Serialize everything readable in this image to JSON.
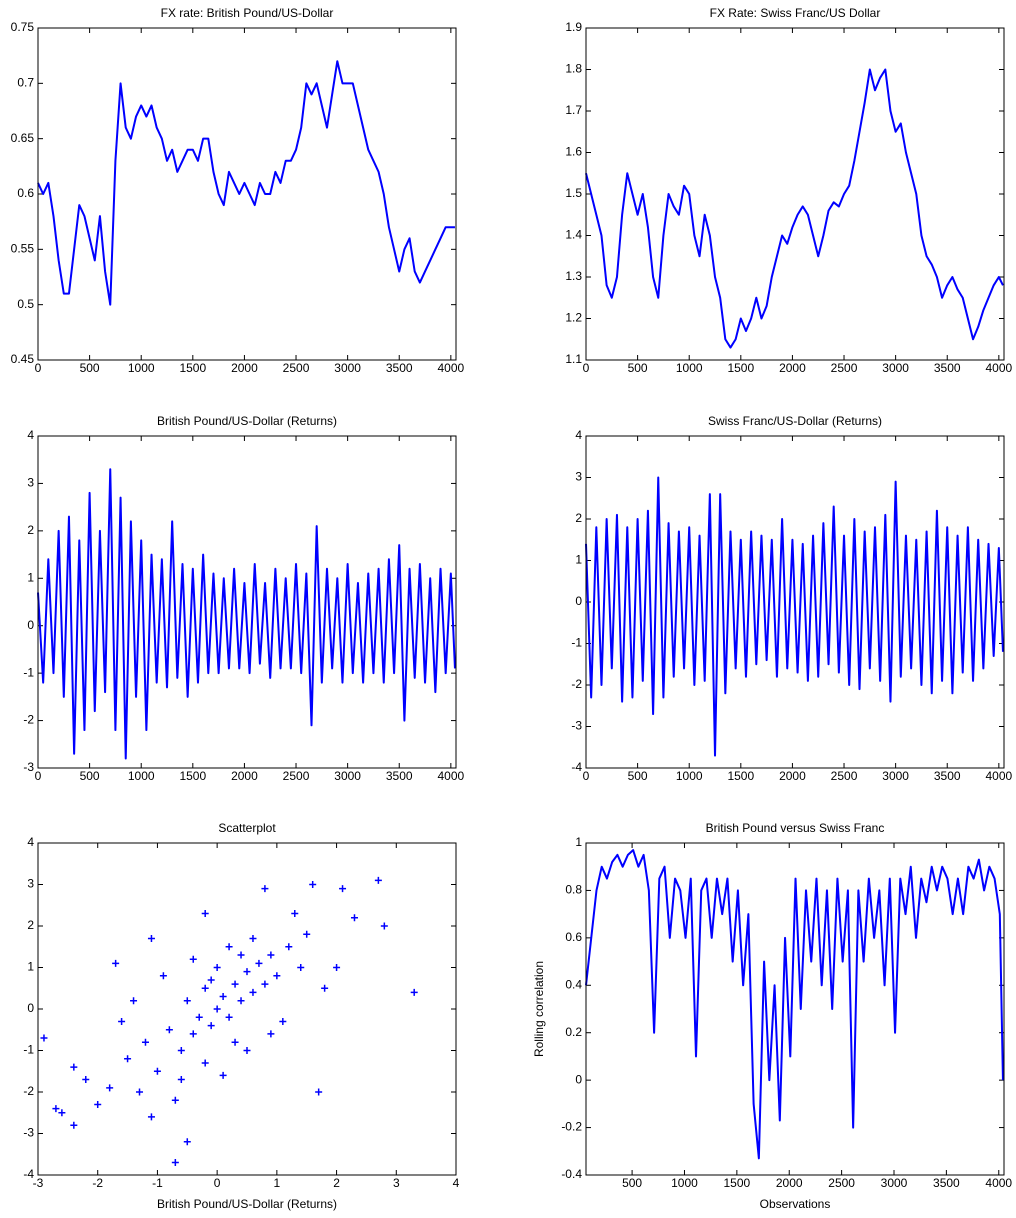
{
  "chart_data": [
    {
      "type": "line",
      "title": "FX rate: British Pound/US-Dollar",
      "color": "#0000ff",
      "x": [
        0,
        50,
        100,
        150,
        200,
        250,
        300,
        350,
        400,
        450,
        500,
        550,
        600,
        650,
        700,
        750,
        800,
        850,
        900,
        950,
        1000,
        1050,
        1100,
        1150,
        1200,
        1250,
        1300,
        1350,
        1400,
        1450,
        1500,
        1550,
        1600,
        1650,
        1700,
        1750,
        1800,
        1850,
        1900,
        1950,
        2000,
        2050,
        2100,
        2150,
        2200,
        2250,
        2300,
        2350,
        2400,
        2450,
        2500,
        2550,
        2600,
        2650,
        2700,
        2750,
        2800,
        2850,
        2900,
        2950,
        3000,
        3050,
        3100,
        3150,
        3200,
        3250,
        3300,
        3350,
        3400,
        3450,
        3500,
        3550,
        3600,
        3650,
        3700,
        3750,
        3800,
        3850,
        3900,
        3950,
        4000,
        4040
      ],
      "values": [
        0.61,
        0.6,
        0.61,
        0.58,
        0.54,
        0.51,
        0.51,
        0.55,
        0.59,
        0.58,
        0.56,
        0.54,
        0.58,
        0.53,
        0.5,
        0.63,
        0.7,
        0.66,
        0.65,
        0.67,
        0.68,
        0.67,
        0.68,
        0.66,
        0.65,
        0.63,
        0.64,
        0.62,
        0.63,
        0.64,
        0.64,
        0.63,
        0.65,
        0.65,
        0.62,
        0.6,
        0.59,
        0.62,
        0.61,
        0.6,
        0.61,
        0.6,
        0.59,
        0.61,
        0.6,
        0.6,
        0.62,
        0.61,
        0.63,
        0.63,
        0.64,
        0.66,
        0.7,
        0.69,
        0.7,
        0.68,
        0.66,
        0.69,
        0.72,
        0.7,
        0.7,
        0.7,
        0.68,
        0.66,
        0.64,
        0.63,
        0.62,
        0.6,
        0.57,
        0.55,
        0.53,
        0.55,
        0.56,
        0.53,
        0.52,
        0.53,
        0.54,
        0.55,
        0.56,
        0.57,
        0.57,
        0.57
      ],
      "xlim": [
        0,
        4050
      ],
      "xticks": [
        0,
        500,
        1000,
        1500,
        2000,
        2500,
        3000,
        3500,
        4000
      ],
      "ylim": [
        0.45,
        0.75
      ],
      "yticks": [
        0.45,
        0.5,
        0.55,
        0.6,
        0.65,
        0.7,
        0.75
      ]
    },
    {
      "type": "line",
      "title": "FX Rate: Swiss Franc/US Dollar",
      "color": "#0000ff",
      "x": [
        0,
        50,
        100,
        150,
        200,
        250,
        300,
        350,
        400,
        450,
        500,
        550,
        600,
        650,
        700,
        750,
        800,
        850,
        900,
        950,
        1000,
        1050,
        1100,
        1150,
        1200,
        1250,
        1300,
        1350,
        1400,
        1450,
        1500,
        1550,
        1600,
        1650,
        1700,
        1750,
        1800,
        1850,
        1900,
        1950,
        2000,
        2050,
        2100,
        2150,
        2200,
        2250,
        2300,
        2350,
        2400,
        2450,
        2500,
        2550,
        2600,
        2650,
        2700,
        2750,
        2800,
        2850,
        2900,
        2950,
        3000,
        3050,
        3100,
        3150,
        3200,
        3250,
        3300,
        3350,
        3400,
        3450,
        3500,
        3550,
        3600,
        3650,
        3700,
        3750,
        3800,
        3850,
        3900,
        3950,
        4000,
        4040
      ],
      "values": [
        1.55,
        1.5,
        1.45,
        1.4,
        1.28,
        1.25,
        1.3,
        1.45,
        1.55,
        1.5,
        1.45,
        1.5,
        1.42,
        1.3,
        1.25,
        1.4,
        1.5,
        1.47,
        1.45,
        1.52,
        1.5,
        1.4,
        1.35,
        1.45,
        1.4,
        1.3,
        1.25,
        1.15,
        1.13,
        1.15,
        1.2,
        1.17,
        1.2,
        1.25,
        1.2,
        1.23,
        1.3,
        1.35,
        1.4,
        1.38,
        1.42,
        1.45,
        1.47,
        1.45,
        1.4,
        1.35,
        1.4,
        1.46,
        1.48,
        1.47,
        1.5,
        1.52,
        1.58,
        1.65,
        1.72,
        1.8,
        1.75,
        1.78,
        1.8,
        1.7,
        1.65,
        1.67,
        1.6,
        1.55,
        1.5,
        1.4,
        1.35,
        1.33,
        1.3,
        1.25,
        1.28,
        1.3,
        1.27,
        1.25,
        1.2,
        1.15,
        1.18,
        1.22,
        1.25,
        1.28,
        1.3,
        1.28
      ],
      "xlim": [
        0,
        4050
      ],
      "xticks": [
        0,
        500,
        1000,
        1500,
        2000,
        2500,
        3000,
        3500,
        4000
      ],
      "ylim": [
        1.1,
        1.9
      ],
      "yticks": [
        1.1,
        1.2,
        1.3,
        1.4,
        1.5,
        1.6,
        1.7,
        1.8,
        1.9
      ]
    },
    {
      "type": "line",
      "title": "British Pound/US-Dollar (Returns)",
      "color": "#0000ff",
      "x": [
        0,
        50,
        100,
        150,
        200,
        250,
        300,
        350,
        400,
        450,
        500,
        550,
        600,
        650,
        700,
        750,
        800,
        850,
        900,
        950,
        1000,
        1050,
        1100,
        1150,
        1200,
        1250,
        1300,
        1350,
        1400,
        1450,
        1500,
        1550,
        1600,
        1650,
        1700,
        1750,
        1800,
        1850,
        1900,
        1950,
        2000,
        2050,
        2100,
        2150,
        2200,
        2250,
        2300,
        2350,
        2400,
        2450,
        2500,
        2550,
        2600,
        2650,
        2700,
        2750,
        2800,
        2850,
        2900,
        2950,
        3000,
        3050,
        3100,
        3150,
        3200,
        3250,
        3300,
        3350,
        3400,
        3450,
        3500,
        3550,
        3600,
        3650,
        3700,
        3750,
        3800,
        3850,
        3900,
        3950,
        4000,
        4040
      ],
      "values": [
        0.7,
        -1.2,
        1.4,
        -1.0,
        2.0,
        -1.5,
        2.3,
        -2.7,
        1.8,
        -2.2,
        2.8,
        -1.8,
        2.0,
        -1.4,
        3.3,
        -2.2,
        2.7,
        -2.8,
        2.2,
        -1.5,
        1.8,
        -2.2,
        1.5,
        -1.2,
        1.4,
        -1.3,
        2.2,
        -1.1,
        1.3,
        -1.5,
        1.2,
        -1.2,
        1.5,
        -1.0,
        1.1,
        -1.0,
        1.0,
        -0.9,
        1.2,
        -0.9,
        0.9,
        -1.0,
        1.3,
        -0.8,
        0.9,
        -1.1,
        1.2,
        -0.9,
        1.0,
        -0.9,
        1.3,
        -1.0,
        1.1,
        -2.1,
        2.1,
        -1.2,
        1.2,
        -0.9,
        1.0,
        -1.2,
        1.3,
        -1.0,
        0.9,
        -1.2,
        1.1,
        -1.0,
        1.2,
        -1.2,
        1.4,
        -1.0,
        1.7,
        -2.0,
        1.2,
        -1.1,
        1.3,
        -1.2,
        1.0,
        -1.4,
        1.2,
        -1.0,
        1.1,
        -0.9
      ],
      "xlim": [
        0,
        4050
      ],
      "xticks": [
        0,
        500,
        1000,
        1500,
        2000,
        2500,
        3000,
        3500,
        4000
      ],
      "ylim": [
        -3,
        4
      ],
      "yticks": [
        -3,
        -2,
        -1,
        0,
        1,
        2,
        3,
        4
      ]
    },
    {
      "type": "line",
      "title": "Swiss Franc/US-Dollar (Returns)",
      "color": "#0000ff",
      "x": [
        0,
        50,
        100,
        150,
        200,
        250,
        300,
        350,
        400,
        450,
        500,
        550,
        600,
        650,
        700,
        750,
        800,
        850,
        900,
        950,
        1000,
        1050,
        1100,
        1150,
        1200,
        1250,
        1300,
        1350,
        1400,
        1450,
        1500,
        1550,
        1600,
        1650,
        1700,
        1750,
        1800,
        1850,
        1900,
        1950,
        2000,
        2050,
        2100,
        2150,
        2200,
        2250,
        2300,
        2350,
        2400,
        2450,
        2500,
        2550,
        2600,
        2650,
        2700,
        2750,
        2800,
        2850,
        2900,
        2950,
        3000,
        3050,
        3100,
        3150,
        3200,
        3250,
        3300,
        3350,
        3400,
        3450,
        3500,
        3550,
        3600,
        3650,
        3700,
        3750,
        3800,
        3850,
        3900,
        3950,
        4000,
        4040
      ],
      "values": [
        1.4,
        -2.3,
        1.8,
        -2.0,
        2.0,
        -1.6,
        2.1,
        -2.4,
        1.8,
        -2.3,
        2.0,
        -1.9,
        2.2,
        -2.7,
        3.0,
        -2.3,
        1.9,
        -1.8,
        1.7,
        -1.6,
        1.8,
        -2.0,
        1.6,
        -1.9,
        2.6,
        -3.7,
        2.6,
        -2.2,
        1.7,
        -1.6,
        1.5,
        -1.8,
        1.7,
        -1.5,
        1.6,
        -1.4,
        1.5,
        -1.8,
        2.0,
        -1.6,
        1.5,
        -1.7,
        1.4,
        -1.9,
        1.6,
        -1.8,
        1.9,
        -1.5,
        2.3,
        -1.7,
        1.6,
        -2.0,
        2.0,
        -2.1,
        1.7,
        -1.6,
        1.8,
        -1.9,
        2.1,
        -2.4,
        2.9,
        -1.8,
        1.6,
        -1.6,
        1.5,
        -2.0,
        1.7,
        -2.2,
        2.2,
        -1.9,
        1.8,
        -2.2,
        1.6,
        -1.7,
        1.8,
        -1.9,
        1.5,
        -1.6,
        1.4,
        -1.3,
        1.3,
        -1.2
      ],
      "xlim": [
        0,
        4050
      ],
      "xticks": [
        0,
        500,
        1000,
        1500,
        2000,
        2500,
        3000,
        3500,
        4000
      ],
      "ylim": [
        -4,
        4
      ],
      "yticks": [
        -4,
        -3,
        -2,
        -1,
        0,
        1,
        2,
        3,
        4
      ]
    },
    {
      "type": "scatter",
      "title": "Scatterplot",
      "xlabel": "British Pound/US-Dollar (Returns)",
      "color": "#0000ff",
      "x": [
        -2.9,
        -2.7,
        -2.6,
        -2.4,
        -2.4,
        -1.7,
        -1.1,
        -0.7,
        -0.5,
        3.3,
        2.7,
        2.8,
        1.6,
        1.7,
        2.1,
        0.8,
        -0.2,
        -1.5,
        -1.2,
        -1.0,
        -0.8,
        -0.6,
        -0.5,
        -0.4,
        -0.3,
        -0.2,
        -0.1,
        0,
        0.1,
        0.2,
        0.3,
        0.4,
        0.5,
        0.6,
        0.7,
        0.8,
        0.9,
        1.0,
        1.2,
        1.4,
        -1.8,
        -2.0,
        -1.3,
        -0.9,
        -0.7,
        0.2,
        0.5,
        1.1,
        1.5,
        2.0,
        -0.2,
        0.0,
        0.3,
        -1.6,
        1.8,
        -0.4,
        0.6,
        -1.1,
        2.3,
        -2.2,
        0.9,
        -0.1,
        0.4,
        -0.6,
        1.3,
        -1.4,
        0.1
      ],
      "values": [
        -0.7,
        -2.4,
        -2.5,
        -2.8,
        -1.4,
        1.1,
        1.7,
        -3.7,
        -3.2,
        0.4,
        3.1,
        2.0,
        3.0,
        -2.0,
        2.9,
        2.9,
        2.3,
        -1.2,
        -0.8,
        -1.5,
        -0.5,
        -1.0,
        0.2,
        -0.6,
        -0.2,
        0.5,
        -0.4,
        0,
        0.3,
        -0.2,
        0.6,
        0.2,
        0.9,
        0.4,
        1.1,
        0.6,
        1.3,
        0.8,
        1.5,
        1.0,
        -1.9,
        -2.3,
        -2.0,
        0.8,
        -2.2,
        1.5,
        -1.0,
        -0.3,
        1.8,
        1.0,
        -1.3,
        1.0,
        -0.8,
        -0.3,
        0.5,
        1.2,
        1.7,
        -2.6,
        2.2,
        -1.7,
        -0.6,
        0.7,
        1.3,
        -1.7,
        2.3,
        0.2,
        -1.6
      ],
      "xlim": [
        -3,
        4
      ],
      "xticks": [
        -3,
        -2,
        -1,
        0,
        1,
        2,
        3,
        4
      ],
      "ylim": [
        -4,
        4
      ],
      "yticks": [
        -4,
        -3,
        -2,
        -1,
        0,
        1,
        2,
        3,
        4
      ]
    },
    {
      "type": "line",
      "title": "British Pound versus Swiss Franc",
      "xlabel": "Observations",
      "ylabel": "Rolling correlation",
      "color": "#0000ff",
      "x": [
        60,
        110,
        160,
        210,
        260,
        310,
        360,
        410,
        460,
        510,
        560,
        610,
        660,
        710,
        760,
        810,
        860,
        910,
        960,
        1010,
        1060,
        1110,
        1160,
        1210,
        1260,
        1310,
        1360,
        1410,
        1460,
        1510,
        1560,
        1610,
        1660,
        1710,
        1760,
        1810,
        1860,
        1910,
        1960,
        2010,
        2060,
        2110,
        2160,
        2210,
        2260,
        2310,
        2360,
        2410,
        2460,
        2510,
        2560,
        2610,
        2660,
        2710,
        2760,
        2810,
        2860,
        2910,
        2960,
        3010,
        3060,
        3110,
        3160,
        3210,
        3260,
        3310,
        3360,
        3410,
        3460,
        3510,
        3560,
        3610,
        3660,
        3710,
        3760,
        3810,
        3860,
        3910,
        3960,
        4010,
        4040
      ],
      "values": [
        0.4,
        0.6,
        0.8,
        0.9,
        0.85,
        0.92,
        0.95,
        0.9,
        0.95,
        0.97,
        0.9,
        0.95,
        0.8,
        0.2,
        0.85,
        0.9,
        0.6,
        0.85,
        0.8,
        0.6,
        0.85,
        0.1,
        0.8,
        0.85,
        0.6,
        0.85,
        0.7,
        0.85,
        0.5,
        0.8,
        0.4,
        0.7,
        -0.1,
        -0.33,
        0.5,
        0.0,
        0.4,
        -0.17,
        0.6,
        0.1,
        0.85,
        0.3,
        0.8,
        0.5,
        0.85,
        0.4,
        0.8,
        0.3,
        0.85,
        0.5,
        0.8,
        -0.2,
        0.8,
        0.5,
        0.85,
        0.6,
        0.8,
        0.4,
        0.85,
        0.2,
        0.85,
        0.7,
        0.9,
        0.6,
        0.85,
        0.75,
        0.9,
        0.8,
        0.9,
        0.85,
        0.7,
        0.85,
        0.7,
        0.9,
        0.85,
        0.93,
        0.8,
        0.9,
        0.85,
        0.7,
        0.0
      ],
      "xlim": [
        60,
        4050
      ],
      "xticks": [
        500,
        1000,
        1500,
        2000,
        2500,
        3000,
        3500,
        4000
      ],
      "ylim": [
        -0.4,
        1
      ],
      "yticks": [
        -0.4,
        -0.2,
        0,
        0.2,
        0.4,
        0.6,
        0.8,
        1
      ]
    }
  ]
}
